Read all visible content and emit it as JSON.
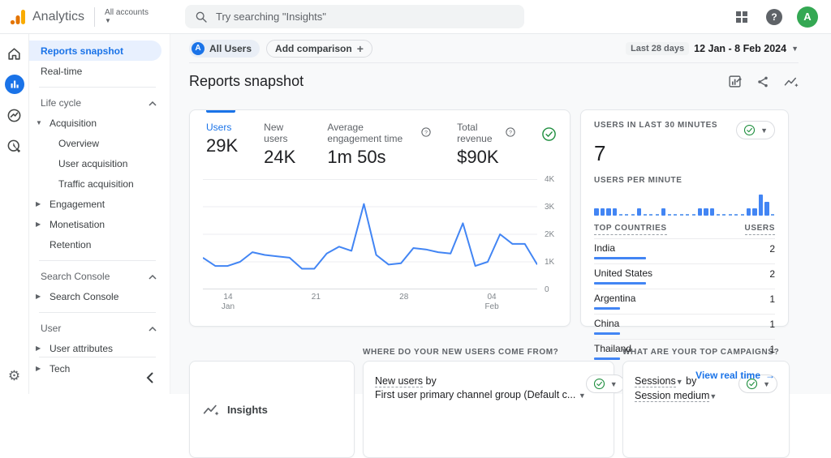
{
  "colors": {
    "accent": "#1a73e8",
    "chart_blue": "#4285f4",
    "green": "#1e8e3e",
    "logo_orange": "#f9ab00",
    "logo_dark_orange": "#e37400"
  },
  "header": {
    "app_name": "Analytics",
    "account_switcher": "All accounts",
    "search_placeholder": "Try searching \"Insights\"",
    "avatar_letter": "A",
    "help_glyph": "?"
  },
  "sidebar": {
    "top_items": [
      {
        "label": "Reports snapshot"
      },
      {
        "label": "Real-time"
      }
    ],
    "sections": [
      {
        "title": "Life cycle",
        "items": [
          {
            "label": "Acquisition"
          },
          {
            "label": "Overview"
          },
          {
            "label": "User acquisition"
          },
          {
            "label": "Traffic acquisition"
          },
          {
            "label": "Engagement"
          },
          {
            "label": "Monetisation"
          },
          {
            "label": "Retention"
          }
        ]
      },
      {
        "title": "Search Console",
        "items": [
          {
            "label": "Search Console"
          }
        ]
      },
      {
        "title": "User",
        "items": [
          {
            "label": "User attributes"
          },
          {
            "label": "Tech"
          }
        ]
      }
    ]
  },
  "toolbar": {
    "segment_avatar": "A",
    "segment_chip": "All Users",
    "add_comparison": "Add comparison",
    "add_plus": "+",
    "date_range_label": "Last 28 days",
    "date_range": "12 Jan - 8 Feb 2024"
  },
  "page": {
    "title": "Reports snapshot"
  },
  "metrics_card": {
    "metrics": [
      {
        "label": "Users",
        "value": "29K"
      },
      {
        "label": "New users",
        "value": "24K"
      },
      {
        "label": "Average engagement time",
        "value": "1m 50s"
      },
      {
        "label": "Total revenue",
        "value": "$90K"
      }
    ]
  },
  "realtime_card": {
    "title": "USERS IN LAST 30 MINUTES",
    "value": "7",
    "per_minute_title": "USERS PER MINUTE",
    "link": "View real time",
    "link_arrow": "→"
  },
  "bottom": {
    "insights_label": "Insights",
    "new_users_header": "WHERE DO YOUR NEW USERS COME FROM?",
    "campaigns_header": "WHAT ARE YOUR TOP CAMPAIGNS?",
    "new_users_metric": "New users",
    "new_users_by": "by",
    "new_users_dimension": "First user primary channel group (Default c...",
    "sessions_metric": "Sessions",
    "sessions_by": "by",
    "sessions_dimension": "Session medium"
  },
  "chart_data": [
    {
      "type": "line",
      "title": "Users by day (Last 28 days, 12 Jan - 8 Feb 2024)",
      "values": [
        1150,
        850,
        850,
        1000,
        1350,
        1250,
        1200,
        1150,
        750,
        750,
        1300,
        1550,
        1400,
        3100,
        1250,
        900,
        950,
        1500,
        1450,
        1350,
        1300,
        2400,
        850,
        1000,
        2000,
        1650,
        1650,
        900
      ],
      "x_ticks": [
        {
          "index": 2,
          "label": "14",
          "sub": "Jan"
        },
        {
          "index": 9,
          "label": "21"
        },
        {
          "index": 16,
          "label": "28"
        },
        {
          "index": 23,
          "label": "04",
          "sub": "Feb"
        }
      ],
      "ylim": [
        0,
        4000
      ],
      "y_ticks": [
        {
          "value": 0,
          "label": "0"
        },
        {
          "value": 1000,
          "label": "1K"
        },
        {
          "value": 2000,
          "label": "2K"
        },
        {
          "value": 3000,
          "label": "3K"
        },
        {
          "value": 4000,
          "label": "4K"
        }
      ],
      "grid": true,
      "legend": "none",
      "line_color": "#4285f4"
    },
    {
      "type": "bar",
      "title": "Users per minute (last 30 minutes)",
      "values": [
        1,
        1,
        1,
        1,
        0,
        0,
        0,
        1,
        0,
        0,
        0,
        1,
        0,
        0,
        0,
        0,
        0,
        1,
        1,
        1,
        0,
        0,
        0,
        0,
        0,
        1,
        1,
        3,
        2,
        0
      ],
      "ylim": [
        0,
        3
      ],
      "bar_color": "#4285f4"
    },
    {
      "type": "table",
      "title": "Top countries",
      "columns": [
        "TOP COUNTRIES",
        "USERS"
      ],
      "rows": [
        {
          "country": "India",
          "users": 2
        },
        {
          "country": "United States",
          "users": 2
        },
        {
          "country": "Argentina",
          "users": 1
        },
        {
          "country": "China",
          "users": 1
        },
        {
          "country": "Thailand",
          "users": 1
        }
      ]
    }
  ]
}
